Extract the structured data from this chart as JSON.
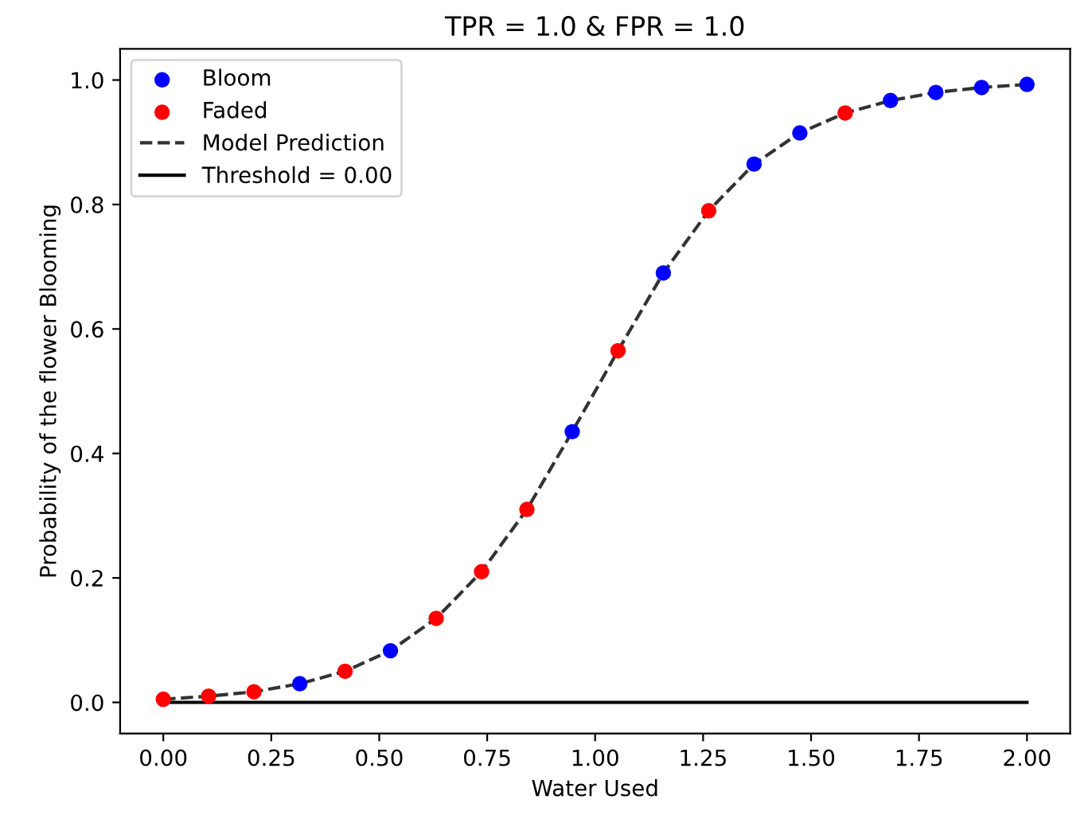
{
  "chart_data": {
    "type": "scatter",
    "title": "TPR = 1.0 & FPR = 1.0",
    "xlabel": "Water Used",
    "ylabel": "Probability of the flower Blooming",
    "series": [
      {
        "name": "Bloom",
        "color": "#0000ff",
        "marker": "circle",
        "x": [
          0.316,
          0.526,
          0.947,
          1.158,
          1.368,
          1.474,
          1.684,
          1.789,
          1.895,
          2.0
        ],
        "values": [
          0.03,
          0.083,
          0.435,
          0.69,
          0.865,
          0.915,
          0.967,
          0.98,
          0.988,
          0.993
        ]
      },
      {
        "name": "Faded",
        "color": "#ff0000",
        "marker": "circle",
        "x": [
          0.0,
          0.105,
          0.21,
          0.421,
          0.632,
          0.737,
          0.842,
          1.053,
          1.263,
          1.579
        ],
        "values": [
          0.005,
          0.01,
          0.017,
          0.05,
          0.135,
          0.21,
          0.31,
          0.565,
          0.79,
          0.947
        ]
      },
      {
        "name": "Model Prediction",
        "type": "line",
        "color": "#333333",
        "line_style": "dashed",
        "x": [
          0.0,
          0.105,
          0.21,
          0.316,
          0.421,
          0.526,
          0.632,
          0.737,
          0.842,
          0.947,
          1.053,
          1.158,
          1.263,
          1.368,
          1.474,
          1.579,
          1.684,
          1.789,
          1.895,
          2.0
        ],
        "values": [
          0.005,
          0.01,
          0.017,
          0.03,
          0.05,
          0.083,
          0.135,
          0.21,
          0.31,
          0.435,
          0.565,
          0.69,
          0.79,
          0.865,
          0.915,
          0.947,
          0.967,
          0.98,
          0.988,
          0.993
        ]
      },
      {
        "name": "Threshold = 0.00",
        "type": "line",
        "color": "#000000",
        "line_style": "solid",
        "x": [
          0.0,
          2.0
        ],
        "values": [
          0.0,
          0.0
        ]
      }
    ],
    "xlim": [
      -0.1,
      2.1
    ],
    "ylim": [
      -0.05,
      1.05
    ],
    "xticks": [
      {
        "value": 0,
        "label": "0.00"
      },
      {
        "value": 0.25,
        "label": "0.25"
      },
      {
        "value": 0.5,
        "label": "0.50"
      },
      {
        "value": 0.75,
        "label": "0.75"
      },
      {
        "value": 1,
        "label": "1.00"
      },
      {
        "value": 1.25,
        "label": "1.25"
      },
      {
        "value": 1.5,
        "label": "1.50"
      },
      {
        "value": 1.75,
        "label": "1.75"
      },
      {
        "value": 2,
        "label": "2.00"
      }
    ],
    "yticks": [
      {
        "value": 0,
        "label": "0.0"
      },
      {
        "value": 0.2,
        "label": "0.2"
      },
      {
        "value": 0.4,
        "label": "0.4"
      },
      {
        "value": 0.6,
        "label": "0.6"
      },
      {
        "value": 0.8,
        "label": "0.8"
      },
      {
        "value": 1,
        "label": "1.0"
      }
    ],
    "legend": "top left"
  }
}
